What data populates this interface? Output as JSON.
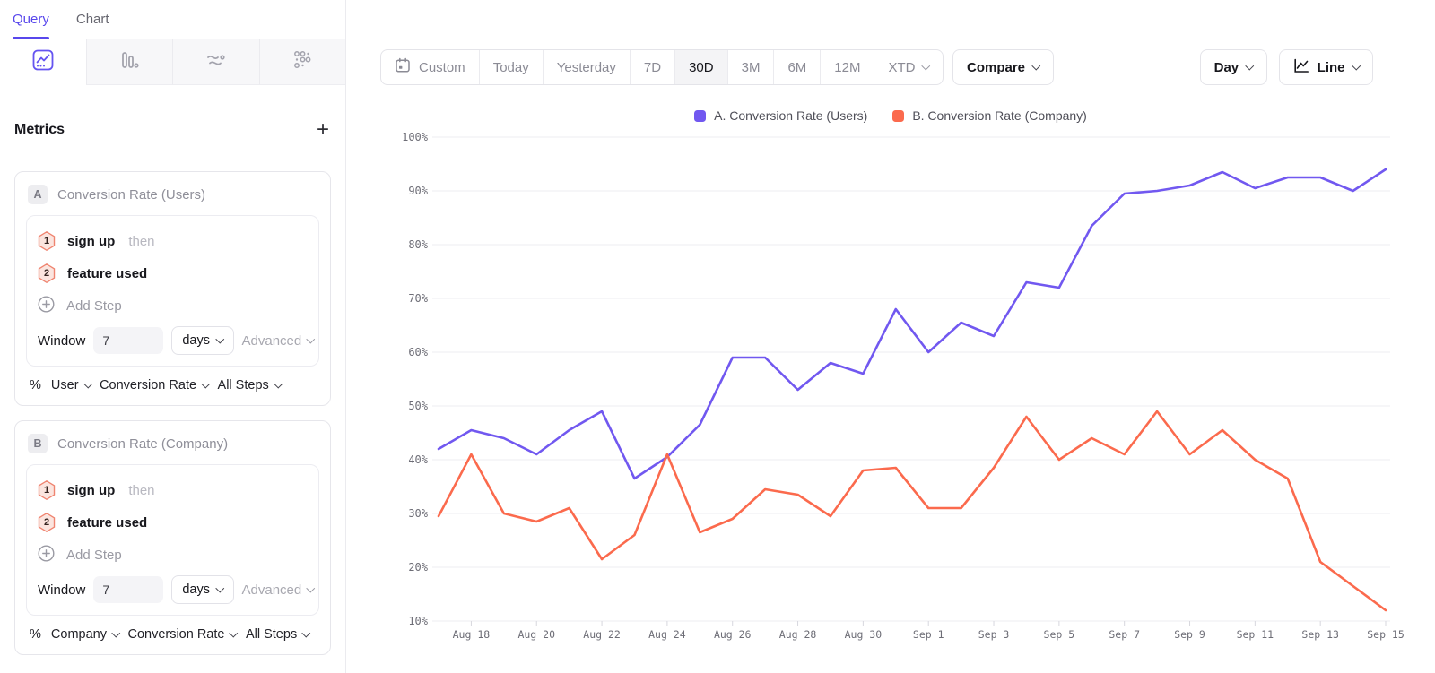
{
  "colors": {
    "accent": "#5847ec",
    "series_a": "#7158f0",
    "series_b": "#fb6a4d"
  },
  "tabs": {
    "query": "Query",
    "chart": "Chart"
  },
  "chart_type_tabs": [
    "line-chart",
    "bar-chart",
    "flow",
    "dots-grid"
  ],
  "metrics_panel": {
    "title": "Metrics",
    "add_label": "+",
    "cards": [
      {
        "badge": "A",
        "title": "Conversion Rate (Users)",
        "steps": [
          {
            "num": "1",
            "label": "sign up",
            "suffix": "then"
          },
          {
            "num": "2",
            "label": "feature used",
            "suffix": ""
          }
        ],
        "add_step_label": "Add Step",
        "window_label": "Window",
        "window_value": "7",
        "window_unit": "days",
        "advanced_label": "Advanced",
        "measure_prefix": "%",
        "measure_entity": "User",
        "measure_type": "Conversion Rate",
        "measure_steps": "All Steps"
      },
      {
        "badge": "B",
        "title": "Conversion Rate (Company)",
        "steps": [
          {
            "num": "1",
            "label": "sign up",
            "suffix": "then"
          },
          {
            "num": "2",
            "label": "feature used",
            "suffix": ""
          }
        ],
        "add_step_label": "Add Step",
        "window_label": "Window",
        "window_value": "7",
        "window_unit": "days",
        "advanced_label": "Advanced",
        "measure_prefix": "%",
        "measure_entity": "Company",
        "measure_type": "Conversion Rate",
        "measure_steps": "All Steps"
      }
    ]
  },
  "toolbar": {
    "date_ranges": [
      "Custom",
      "Today",
      "Yesterday",
      "7D",
      "30D",
      "3M",
      "6M",
      "12M",
      "XTD"
    ],
    "active_range": "30D",
    "compare_label": "Compare",
    "granularity_label": "Day",
    "chart_style_label": "Line"
  },
  "legend": [
    {
      "label": "A. Conversion Rate (Users)",
      "color": "#7158f0"
    },
    {
      "label": "B. Conversion Rate (Company)",
      "color": "#fb6a4d"
    }
  ],
  "chart_data": {
    "type": "line",
    "title": "",
    "xlabel": "",
    "ylabel": "",
    "ylabel_format": "percent",
    "ylim": [
      10,
      100
    ],
    "yticks": [
      100,
      90,
      80,
      70,
      60,
      50,
      40,
      30,
      20,
      10
    ],
    "grid": true,
    "legend_position": "top-center",
    "x_ticks_every": 2,
    "x": [
      "Aug 17",
      "Aug 18",
      "Aug 19",
      "Aug 20",
      "Aug 21",
      "Aug 22",
      "Aug 23",
      "Aug 24",
      "Aug 25",
      "Aug 26",
      "Aug 27",
      "Aug 28",
      "Aug 29",
      "Aug 30",
      "Aug 31",
      "Sep 1",
      "Sep 2",
      "Sep 3",
      "Sep 4",
      "Sep 5",
      "Sep 6",
      "Sep 7",
      "Sep 8",
      "Sep 9",
      "Sep 10",
      "Sep 11",
      "Sep 12",
      "Sep 13",
      "Sep 14",
      "Sep 15"
    ],
    "series": [
      {
        "name": "A. Conversion Rate (Users)",
        "color": "#7158f0",
        "values": [
          42,
          45.5,
          44,
          41,
          45.5,
          49,
          36.5,
          40.5,
          46.5,
          59,
          59,
          53,
          58,
          56,
          68,
          60,
          65.5,
          63,
          73,
          72,
          83.5,
          89.5,
          90,
          91,
          93.5,
          90.5,
          92.5,
          92.5,
          90,
          94
        ]
      },
      {
        "name": "B. Conversion Rate (Company)",
        "color": "#fb6a4d",
        "values": [
          29.5,
          41,
          30,
          28.5,
          31,
          21.5,
          26,
          41,
          26.5,
          29,
          34.5,
          33.5,
          29.5,
          38,
          38.5,
          31,
          31,
          38.5,
          48,
          40,
          44,
          41,
          49,
          41,
          45.5,
          40,
          36.5,
          21,
          16.5,
          12
        ]
      }
    ]
  }
}
